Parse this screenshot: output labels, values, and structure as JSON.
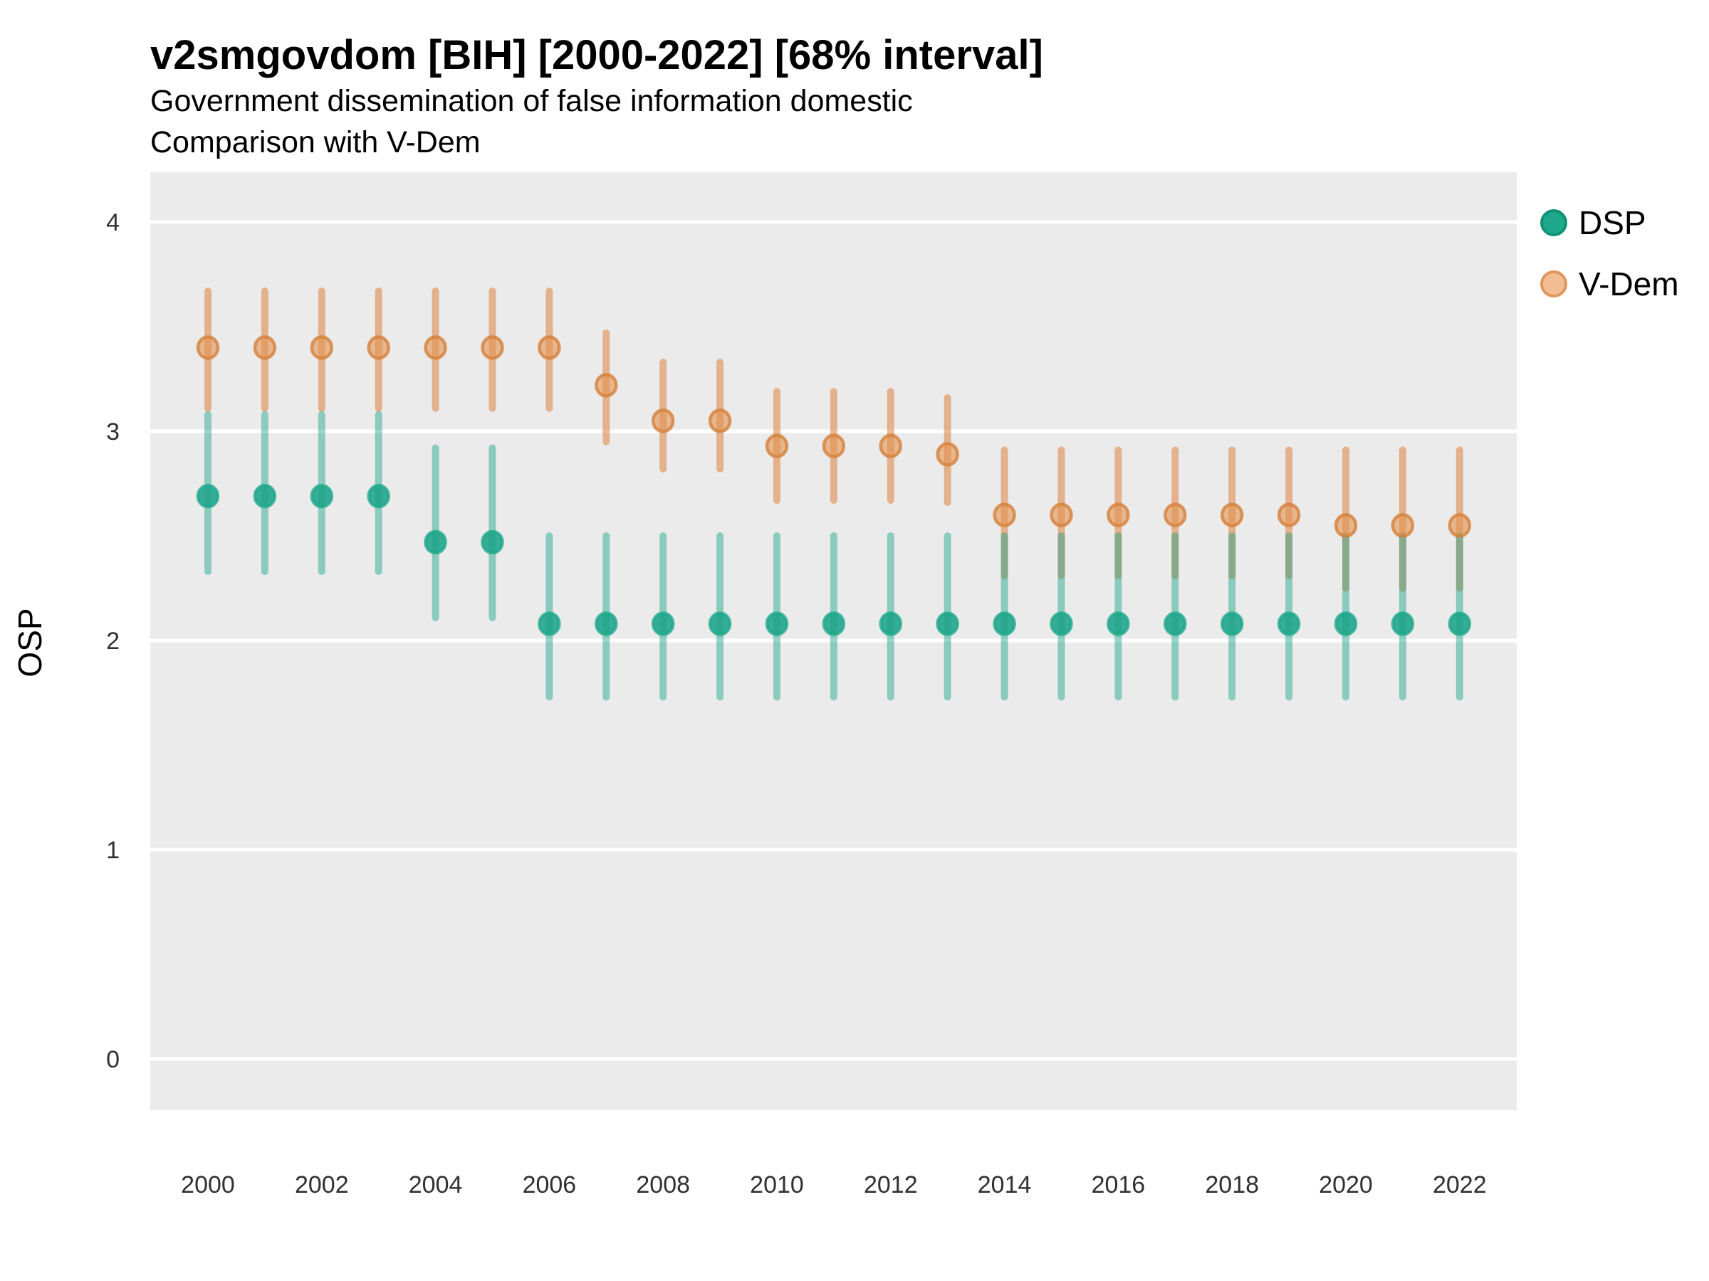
{
  "chart": {
    "title": "v2smgovdom [BIH] [2000-2022] [68% interval]",
    "subtitle1": "Government dissemination of false information domestic",
    "subtitle2": "Comparison with V-Dem"
  },
  "legend": {
    "items": [
      {
        "label": "DSP",
        "fill": "#1EA88B",
        "border": "#129177"
      },
      {
        "label": "V-Dem",
        "fill": "#F2BD93",
        "border": "#E2955C"
      }
    ]
  },
  "colors": {
    "panel_bg": "#EBEBEB",
    "gridline": "#FFFFFF",
    "title_text": "#000000",
    "tick_text": "#303030",
    "dsp_green": "#17A287",
    "vdem_orange": "#DD8A4C"
  },
  "chart_data": {
    "type": "scatter",
    "subtype": "pointrange",
    "title": "v2smgovdom [BIH] [2000-2022] [68% interval]",
    "subtitle": [
      "Government dissemination of false information domestic",
      "Comparison with V-Dem"
    ],
    "interval": "68%",
    "xlabel": "",
    "ylabel": "OSP",
    "ylim": [
      0,
      4
    ],
    "y_ticks": [
      0,
      1,
      2,
      3,
      4
    ],
    "x_tick_labels": [
      "2000",
      "2002",
      "2004",
      "2006",
      "2008",
      "2010",
      "2012",
      "2014",
      "2016",
      "2018",
      "2020",
      "2022"
    ],
    "x_range": [
      2000,
      2022
    ],
    "grid": "white-on-grey",
    "legend_position": "right",
    "series": [
      {
        "name": "DSP",
        "line_color": "#17A287",
        "line_opacity": 0.45,
        "point_fill": "#17A287",
        "point_fill_opacity": 0.85,
        "point_stroke": "#1FA98C",
        "point_stroke_opacity": 0.8,
        "points": [
          {
            "year": 2000,
            "y": 2.69,
            "lo": 2.33,
            "hi": 3.08
          },
          {
            "year": 2001,
            "y": 2.69,
            "lo": 2.33,
            "hi": 3.08
          },
          {
            "year": 2002,
            "y": 2.69,
            "lo": 2.33,
            "hi": 3.08
          },
          {
            "year": 2003,
            "y": 2.69,
            "lo": 2.33,
            "hi": 3.08
          },
          {
            "year": 2004,
            "y": 2.47,
            "lo": 2.11,
            "hi": 2.92
          },
          {
            "year": 2005,
            "y": 2.47,
            "lo": 2.11,
            "hi": 2.92
          },
          {
            "year": 2006,
            "y": 2.08,
            "lo": 1.73,
            "hi": 2.5
          },
          {
            "year": 2007,
            "y": 2.08,
            "lo": 1.73,
            "hi": 2.5
          },
          {
            "year": 2008,
            "y": 2.08,
            "lo": 1.73,
            "hi": 2.5
          },
          {
            "year": 2009,
            "y": 2.08,
            "lo": 1.73,
            "hi": 2.5
          },
          {
            "year": 2010,
            "y": 2.08,
            "lo": 1.73,
            "hi": 2.5
          },
          {
            "year": 2011,
            "y": 2.08,
            "lo": 1.73,
            "hi": 2.5
          },
          {
            "year": 2012,
            "y": 2.08,
            "lo": 1.73,
            "hi": 2.5
          },
          {
            "year": 2013,
            "y": 2.08,
            "lo": 1.73,
            "hi": 2.5
          },
          {
            "year": 2014,
            "y": 2.08,
            "lo": 1.73,
            "hi": 2.5
          },
          {
            "year": 2015,
            "y": 2.08,
            "lo": 1.73,
            "hi": 2.5
          },
          {
            "year": 2016,
            "y": 2.08,
            "lo": 1.73,
            "hi": 2.5
          },
          {
            "year": 2017,
            "y": 2.08,
            "lo": 1.73,
            "hi": 2.5
          },
          {
            "year": 2018,
            "y": 2.08,
            "lo": 1.73,
            "hi": 2.5
          },
          {
            "year": 2019,
            "y": 2.08,
            "lo": 1.73,
            "hi": 2.5
          },
          {
            "year": 2020,
            "y": 2.08,
            "lo": 1.73,
            "hi": 2.5
          },
          {
            "year": 2021,
            "y": 2.08,
            "lo": 1.73,
            "hi": 2.5
          },
          {
            "year": 2022,
            "y": 2.08,
            "lo": 1.73,
            "hi": 2.5
          }
        ]
      },
      {
        "name": "V-Dem",
        "line_color": "#DD8A4C",
        "line_opacity": 0.6,
        "point_fill": "#E2924F",
        "point_fill_opacity": 0.6,
        "point_stroke": "#D5813B",
        "point_stroke_opacity": 0.8,
        "points": [
          {
            "year": 2000,
            "y": 3.4,
            "lo": 3.11,
            "hi": 3.67
          },
          {
            "year": 2001,
            "y": 3.4,
            "lo": 3.11,
            "hi": 3.67
          },
          {
            "year": 2002,
            "y": 3.4,
            "lo": 3.11,
            "hi": 3.67
          },
          {
            "year": 2003,
            "y": 3.4,
            "lo": 3.11,
            "hi": 3.67
          },
          {
            "year": 2004,
            "y": 3.4,
            "lo": 3.11,
            "hi": 3.67
          },
          {
            "year": 2005,
            "y": 3.4,
            "lo": 3.11,
            "hi": 3.67
          },
          {
            "year": 2006,
            "y": 3.4,
            "lo": 3.11,
            "hi": 3.67
          },
          {
            "year": 2007,
            "y": 3.22,
            "lo": 2.95,
            "hi": 3.47
          },
          {
            "year": 2008,
            "y": 3.05,
            "lo": 2.82,
            "hi": 3.33
          },
          {
            "year": 2009,
            "y": 3.05,
            "lo": 2.82,
            "hi": 3.33
          },
          {
            "year": 2010,
            "y": 2.93,
            "lo": 2.67,
            "hi": 3.19
          },
          {
            "year": 2011,
            "y": 2.93,
            "lo": 2.67,
            "hi": 3.19
          },
          {
            "year": 2012,
            "y": 2.93,
            "lo": 2.67,
            "hi": 3.19
          },
          {
            "year": 2013,
            "y": 2.89,
            "lo": 2.66,
            "hi": 3.16
          },
          {
            "year": 2014,
            "y": 2.6,
            "lo": 2.31,
            "hi": 2.91
          },
          {
            "year": 2015,
            "y": 2.6,
            "lo": 2.31,
            "hi": 2.91
          },
          {
            "year": 2016,
            "y": 2.6,
            "lo": 2.31,
            "hi": 2.91
          },
          {
            "year": 2017,
            "y": 2.6,
            "lo": 2.31,
            "hi": 2.91
          },
          {
            "year": 2018,
            "y": 2.6,
            "lo": 2.31,
            "hi": 2.91
          },
          {
            "year": 2019,
            "y": 2.6,
            "lo": 2.31,
            "hi": 2.91
          },
          {
            "year": 2020,
            "y": 2.55,
            "lo": 2.25,
            "hi": 2.91
          },
          {
            "year": 2021,
            "y": 2.55,
            "lo": 2.25,
            "hi": 2.91
          },
          {
            "year": 2022,
            "y": 2.55,
            "lo": 2.25,
            "hi": 2.91
          }
        ]
      }
    ]
  }
}
